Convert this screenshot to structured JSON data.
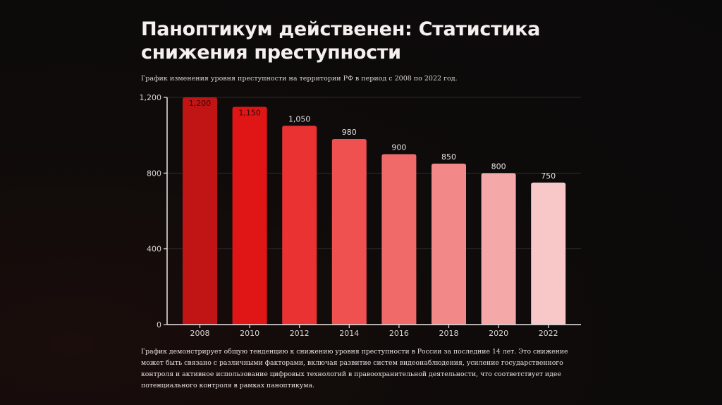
{
  "title": "Паноптикум действенен: Статистика снижения преступности",
  "subtitle": "График изменения уровня преступности на территории РФ в период с 2008 по 2022 год.",
  "description": "График демонстрирует общую тенденцию к снижению уровня преступности в России за последние 14 лет. Это снижение может быть связано с различными факторами, включая развитие систем видеонаблюдения, усиление государственного контроля и активное использование цифровых технологий в правоохранительной деятельности, что соответствует идее потенциального контроля в рамках паноптикума.",
  "chart_data": {
    "type": "bar",
    "title": "",
    "xlabel": "",
    "ylabel": "",
    "categories": [
      "2008",
      "2010",
      "2012",
      "2014",
      "2016",
      "2018",
      "2020",
      "2022"
    ],
    "values": [
      1200,
      1150,
      1050,
      980,
      900,
      850,
      800,
      750
    ],
    "data_labels": [
      "1,200",
      "1,150",
      "1,050",
      "980",
      "900",
      "850",
      "800",
      "750"
    ],
    "ylim": [
      0,
      1200
    ],
    "yticks": [
      0,
      400,
      800,
      1200
    ],
    "ytick_labels": [
      "0",
      "400",
      "800",
      "1,200"
    ],
    "grid": true,
    "legend": "none",
    "colors": [
      "#c11414",
      "#e01616",
      "#ea3232",
      "#ef5050",
      "#f06a6a",
      "#f28888",
      "#f5a8a8",
      "#f8c8c8"
    ]
  }
}
